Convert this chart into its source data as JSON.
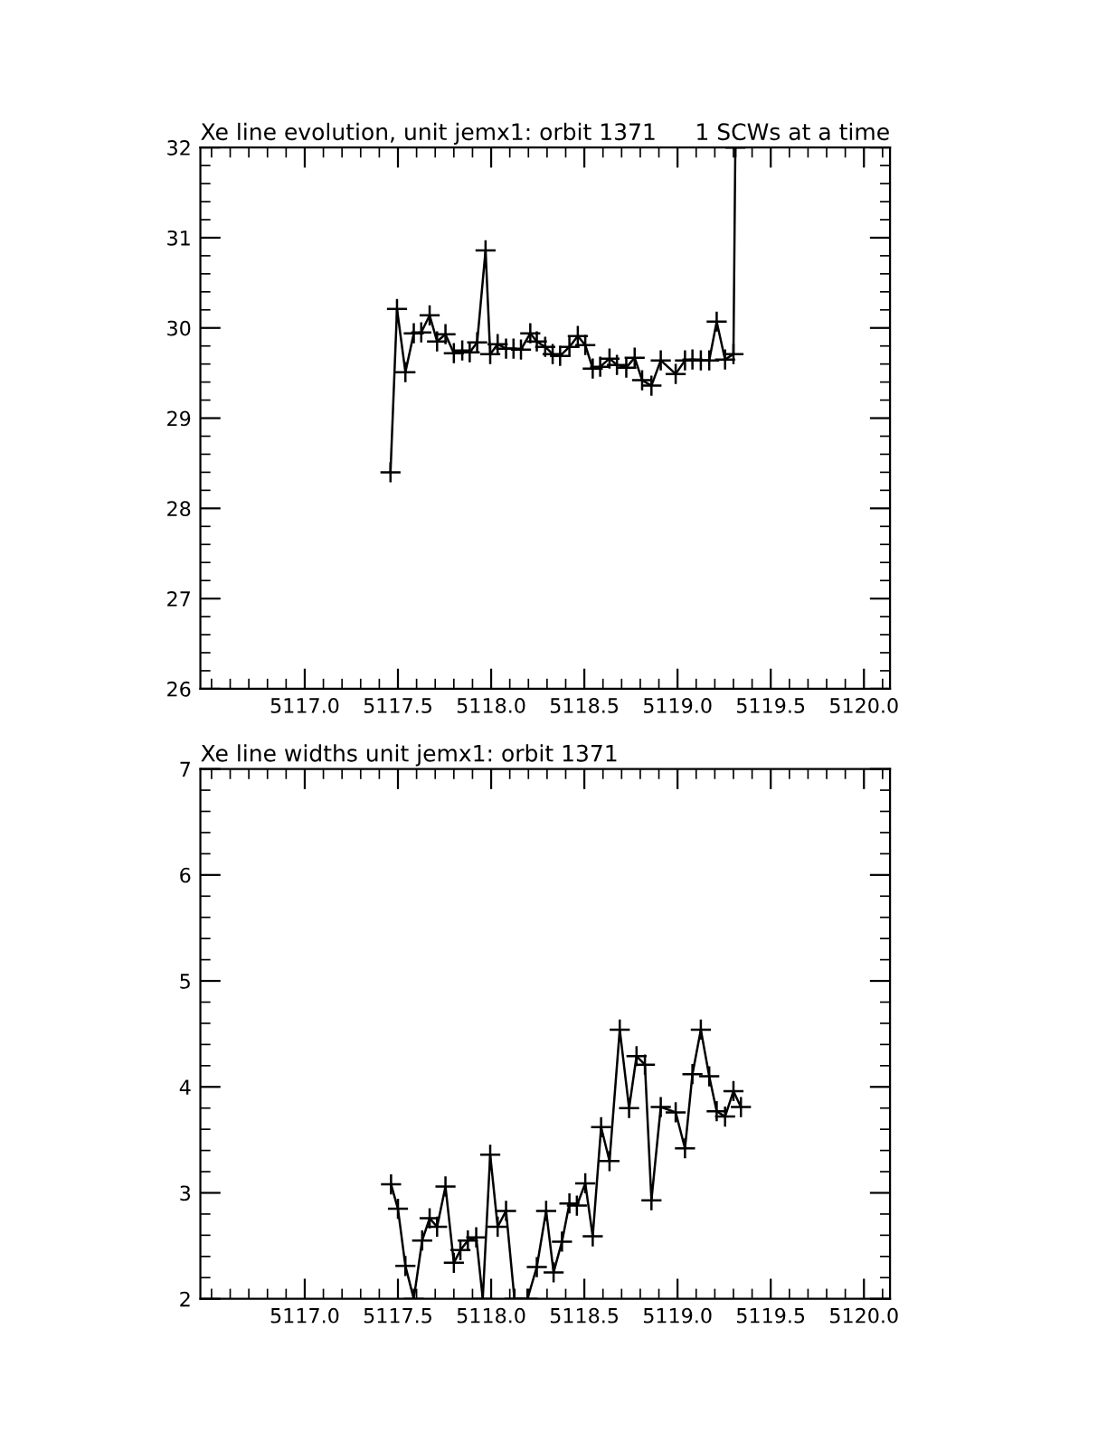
{
  "chart_data": [
    {
      "type": "line",
      "title": "Xe line evolution, unit jemx1: orbit 1371",
      "annotations": [
        "1 SCWs at a time"
      ],
      "marker": "cross",
      "line_style": "solid",
      "grid": false,
      "legend": false,
      "xlim": [
        5116.44,
        5120.14
      ],
      "xticks": [
        {
          "value": 5117,
          "label": "5117.0"
        },
        5117.5,
        {
          "value": 5118,
          "label": "5118.0"
        },
        5118.5,
        {
          "value": 5119,
          "label": "5119.0"
        },
        5119.5,
        {
          "value": 5120,
          "label": "5120.0"
        }
      ],
      "ylim": [
        26,
        32
      ],
      "yticks": [
        26,
        27,
        28,
        29,
        30,
        31,
        32
      ],
      "series": [
        {
          "color": "#000000",
          "x": [
            5117.46,
            5117.495,
            5117.54,
            5117.585,
            5117.625,
            5117.67,
            5117.71,
            5117.755,
            5117.8,
            5117.845,
            5117.885,
            5117.925,
            5117.97,
            5117.995,
            5118.035,
            5118.08,
            5118.12,
            5118.16,
            5118.21,
            5118.245,
            5118.29,
            5118.33,
            5118.37,
            5118.42,
            5118.465,
            5118.505,
            5118.545,
            5118.585,
            5118.635,
            5118.675,
            5118.725,
            5118.77,
            5118.81,
            5118.86,
            5118.91,
            5118.99,
            5119.04,
            5119.08,
            5119.125,
            5119.17,
            5119.21,
            5119.255,
            5119.3,
            5119.31
          ],
          "values": [
            28.4,
            30.21,
            29.51,
            29.94,
            29.95,
            30.14,
            29.85,
            29.93,
            29.72,
            29.75,
            29.73,
            29.84,
            30.86,
            29.71,
            29.82,
            29.77,
            29.77,
            29.76,
            29.94,
            29.85,
            29.79,
            29.71,
            29.69,
            29.79,
            29.91,
            29.81,
            29.55,
            29.57,
            29.66,
            29.59,
            29.56,
            29.67,
            29.42,
            29.36,
            29.64,
            29.49,
            29.64,
            29.65,
            29.64,
            29.64,
            30.07,
            29.65,
            29.71,
            32
          ]
        }
      ]
    },
    {
      "type": "line",
      "title": "Xe line widths unit jemx1: orbit 1371",
      "marker": "cross",
      "line_style": "solid",
      "grid": false,
      "legend": false,
      "xlim": [
        5116.44,
        5120.14
      ],
      "xticks": [
        {
          "value": 5117,
          "label": "5117.0"
        },
        5117.5,
        {
          "value": 5118,
          "label": "5118.0"
        },
        5118.5,
        {
          "value": 5119,
          "label": "5119.0"
        },
        5119.5,
        {
          "value": 5120,
          "label": "5120.0"
        }
      ],
      "ylim": [
        2,
        7
      ],
      "yticks": [
        2,
        3,
        4,
        5,
        6,
        7
      ],
      "series": [
        {
          "color": "#000000",
          "x": [
            5117.463,
            5117.5,
            5117.54,
            5117.585,
            5117.63,
            5117.67,
            5117.71,
            5117.755,
            5117.8,
            5117.835,
            5117.875,
            5117.92,
            5117.955,
            5117.995,
            5118.035,
            5118.08,
            5118.125,
            5118.195,
            5118.245,
            5118.295,
            5118.335,
            5118.38,
            5118.42,
            5118.46,
            5118.505,
            5118.545,
            5118.59,
            5118.635,
            5118.69,
            5118.74,
            5118.78,
            5118.825,
            5118.86,
            5118.91,
            5118.99,
            5119.04,
            5119.08,
            5119.125,
            5119.17,
            5119.21,
            5119.255,
            5119.3,
            5119.34
          ],
          "values": [
            3.08,
            2.85,
            2.31,
            2,
            2.55,
            2.76,
            2.68,
            3.06,
            2.34,
            2.46,
            2.55,
            2.58,
            2,
            3.36,
            2.68,
            2.83,
            2,
            2,
            2.3,
            2.83,
            2.25,
            2.54,
            2.9,
            2.88,
            3.09,
            2.59,
            3.62,
            3.3,
            4.54,
            3.8,
            4.29,
            4.21,
            2.93,
            3.81,
            3.76,
            3.42,
            4.12,
            4.54,
            4.1,
            3.77,
            3.72,
            3.96,
            3.81
          ]
        }
      ]
    }
  ]
}
